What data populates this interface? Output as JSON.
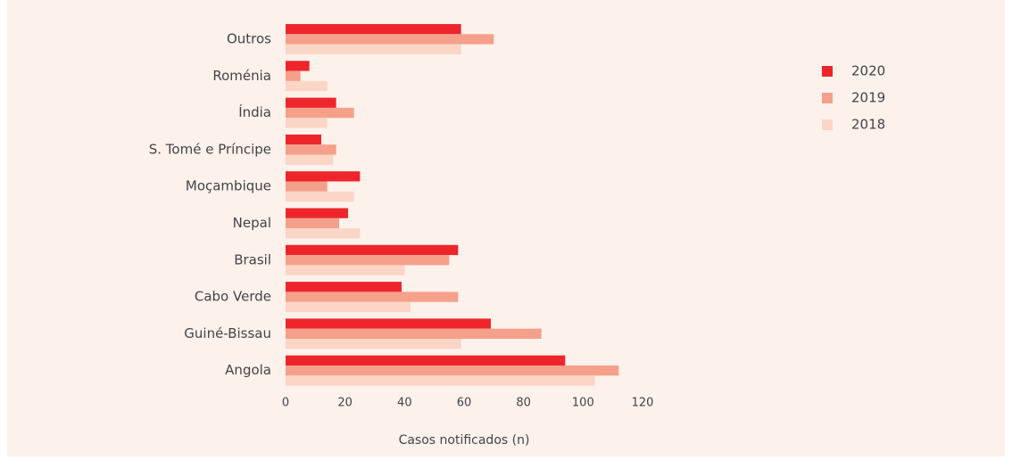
{
  "chart_data": {
    "type": "bar",
    "orientation": "horizontal",
    "x_label": "Casos notificados (n)",
    "categories": [
      "Outros",
      "Roménia",
      "Índia",
      "S. Tomé e Príncipe",
      "Moçambique",
      "Nepal",
      "Brasil",
      "Cabo Verde",
      "Guiné-Bissau",
      "Angola"
    ],
    "series": [
      {
        "name": "2020",
        "color": "#ee252b",
        "values": [
          59,
          8,
          17,
          12,
          25,
          21,
          58,
          39,
          69,
          94
        ]
      },
      {
        "name": "2019",
        "color": "#f5a08a",
        "values": [
          70,
          5,
          23,
          17,
          14,
          18,
          55,
          58,
          86,
          112
        ]
      },
      {
        "name": "2018",
        "color": "#fbd5c5",
        "values": [
          59,
          14,
          14,
          16,
          23,
          25,
          40,
          42,
          59,
          104
        ]
      }
    ],
    "xlim": [
      0,
      120
    ],
    "xticks": [
      0,
      20,
      40,
      60,
      80,
      100,
      120
    ],
    "legend": "right"
  }
}
